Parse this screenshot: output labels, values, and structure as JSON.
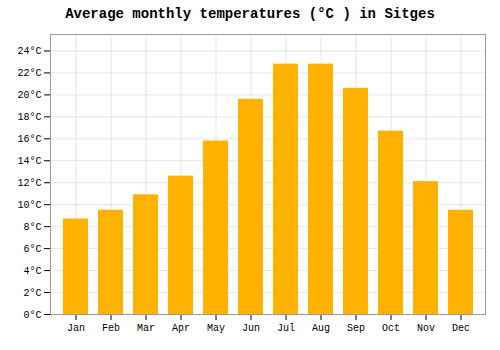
{
  "chart_data": {
    "type": "bar",
    "title": "Average monthly temperatures (°C ) in Sitges",
    "categories": [
      "Jan",
      "Feb",
      "Mar",
      "Apr",
      "May",
      "Jun",
      "Jul",
      "Aug",
      "Sep",
      "Oct",
      "Nov",
      "Dec"
    ],
    "values": [
      8.7,
      9.5,
      10.9,
      12.6,
      15.8,
      19.6,
      22.8,
      22.8,
      20.6,
      16.7,
      12.1,
      9.5
    ],
    "color": "#FFB300",
    "ylim": [
      0,
      25.5
    ],
    "yticks": [
      {
        "value": 0,
        "label": "0°C"
      },
      {
        "value": 2,
        "label": "2°C"
      },
      {
        "value": 4,
        "label": "4°C"
      },
      {
        "value": 6,
        "label": "6°C"
      },
      {
        "value": 8,
        "label": "8°C"
      },
      {
        "value": 10,
        "label": "10°C"
      },
      {
        "value": 12,
        "label": "12°C"
      },
      {
        "value": 14,
        "label": "14°C"
      },
      {
        "value": 16,
        "label": "16°C"
      },
      {
        "value": 18,
        "label": "18°C"
      },
      {
        "value": 20,
        "label": "20°C"
      },
      {
        "value": 22,
        "label": "22°C"
      },
      {
        "value": 24,
        "label": "24°C"
      }
    ],
    "grid": true
  }
}
